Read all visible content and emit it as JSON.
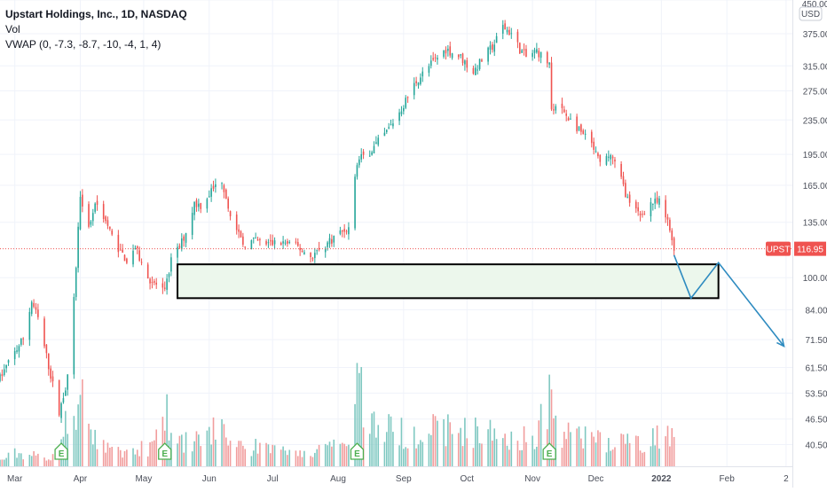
{
  "legend": {
    "title": "Upstart Holdings, Inc., 1D, NASDAQ",
    "vol": "Vol",
    "vwap": "VWAP (0, -7.3, -8.7, -10, -4, 1, 4)"
  },
  "colors": {
    "up": "#26a69a",
    "down": "#ef5350",
    "up_vol": "#7fc8c1",
    "down_vol": "#f19d9d",
    "gap": "#f2b01e",
    "zone_fill": "#ecf7ec",
    "arrow": "#2e8bc0",
    "price_line": "#ef5350",
    "grid": "#f0f3fa",
    "earnings_badge": "#4caf50"
  },
  "chart_data": {
    "type": "candlestick",
    "title": "Upstart Holdings, Inc., 1D, NASDAQ",
    "ticker": "UPST",
    "currency": "USD",
    "last_price": 116.95,
    "last_price_label": "116.95",
    "y_scale": "log",
    "ylim": [
      36,
      450
    ],
    "y_ticks": [
      "450.00",
      "375.00",
      "315.00",
      "275.00",
      "235.00",
      "195.00",
      "165.00",
      "135.00",
      "116.95",
      "100.00",
      "84.00",
      "71.50",
      "61.50",
      "53.50",
      "46.50",
      "40.50"
    ],
    "x_ticks": [
      "Mar",
      "Apr",
      "May",
      "Jun",
      "Jul",
      "Aug",
      "Sep",
      "Oct",
      "Nov",
      "Dec",
      "2022",
      "Feb",
      "2"
    ],
    "x_range": [
      "2021-02-22",
      "2022-03-04"
    ],
    "price_path": [
      [
        "2021-02-22",
        58
      ],
      [
        "2021-02-26",
        63
      ],
      [
        "2021-03-05",
        72
      ],
      [
        "2021-03-09",
        88
      ],
      [
        "2021-03-12",
        80
      ],
      [
        "2021-03-17",
        62
      ],
      [
        "2021-03-22",
        48
      ],
      [
        "2021-03-26",
        58
      ],
      [
        "2021-03-29",
        88
      ],
      [
        "2021-04-01",
        158
      ],
      [
        "2021-04-05",
        130
      ],
      [
        "2021-04-08",
        150
      ],
      [
        "2021-04-12",
        140
      ],
      [
        "2021-04-16",
        125
      ],
      [
        "2021-04-20",
        115
      ],
      [
        "2021-04-23",
        110
      ],
      [
        "2021-04-27",
        118
      ],
      [
        "2021-04-30",
        108
      ],
      [
        "2021-05-03",
        100
      ],
      [
        "2021-05-07",
        96
      ],
      [
        "2021-05-11",
        92
      ],
      [
        "2021-05-14",
        110
      ],
      [
        "2021-05-18",
        118
      ],
      [
        "2021-05-21",
        128
      ],
      [
        "2021-05-25",
        150
      ],
      [
        "2021-05-28",
        148
      ],
      [
        "2021-06-02",
        160
      ],
      [
        "2021-06-07",
        170
      ],
      [
        "2021-06-10",
        148
      ],
      [
        "2021-06-14",
        128
      ],
      [
        "2021-06-17",
        120
      ],
      [
        "2021-06-22",
        122
      ],
      [
        "2021-06-28",
        120
      ],
      [
        "2021-07-06",
        121
      ],
      [
        "2021-07-13",
        118
      ],
      [
        "2021-07-19",
        112
      ],
      [
        "2021-07-23",
        116
      ],
      [
        "2021-07-28",
        122
      ],
      [
        "2021-08-02",
        128
      ],
      [
        "2021-08-06",
        131
      ],
      [
        "2021-08-10",
        188
      ],
      [
        "2021-08-17",
        200
      ],
      [
        "2021-08-24",
        220
      ],
      [
        "2021-08-31",
        250
      ],
      [
        "2021-09-07",
        290
      ],
      [
        "2021-09-14",
        318
      ],
      [
        "2021-09-21",
        345
      ],
      [
        "2021-09-28",
        330
      ],
      [
        "2021-10-04",
        305
      ],
      [
        "2021-10-08",
        325
      ],
      [
        "2021-10-14",
        355
      ],
      [
        "2021-10-18",
        390
      ],
      [
        "2021-10-22",
        375
      ],
      [
        "2021-10-26",
        345
      ],
      [
        "2021-10-29",
        330
      ],
      [
        "2021-11-03",
        342
      ],
      [
        "2021-11-09",
        318
      ],
      [
        "2021-11-10",
        255
      ],
      [
        "2021-11-16",
        245
      ],
      [
        "2021-11-22",
        225
      ],
      [
        "2021-11-29",
        205
      ],
      [
        "2021-12-03",
        185
      ],
      [
        "2021-12-08",
        195
      ],
      [
        "2021-12-13",
        170
      ],
      [
        "2021-12-17",
        148
      ],
      [
        "2021-12-22",
        140
      ],
      [
        "2021-12-27",
        150
      ],
      [
        "2021-12-31",
        150
      ],
      [
        "2022-01-04",
        135
      ],
      [
        "2022-01-07",
        118
      ]
    ],
    "volume_profile": [
      [
        "2021-02-22",
        0.05
      ],
      [
        "2021-03-01",
        0.12
      ],
      [
        "2021-03-20",
        0.08
      ],
      [
        "2021-03-29",
        0.6
      ],
      [
        "2021-04-02",
        0.55
      ],
      [
        "2021-04-06",
        0.25
      ],
      [
        "2021-04-20",
        0.12
      ],
      [
        "2021-05-05",
        0.18
      ],
      [
        "2021-05-11",
        0.55
      ],
      [
        "2021-05-14",
        0.3
      ],
      [
        "2021-05-24",
        0.2
      ],
      [
        "2021-06-04",
        0.35
      ],
      [
        "2021-06-14",
        0.2
      ],
      [
        "2021-07-01",
        0.15
      ],
      [
        "2021-07-20",
        0.12
      ],
      [
        "2021-08-05",
        0.2
      ],
      [
        "2021-08-10",
        0.85
      ],
      [
        "2021-08-16",
        0.4
      ],
      [
        "2021-09-01",
        0.3
      ],
      [
        "2021-09-20",
        0.35
      ],
      [
        "2021-10-14",
        0.3
      ],
      [
        "2021-11-01",
        0.25
      ],
      [
        "2021-11-10",
        0.65
      ],
      [
        "2021-11-15",
        0.3
      ],
      [
        "2021-12-01",
        0.25
      ],
      [
        "2021-12-20",
        0.2
      ],
      [
        "2022-01-07",
        0.35
      ]
    ],
    "earnings_dates": [
      "2021-03-23",
      "2021-05-11",
      "2021-08-10",
      "2021-11-09"
    ],
    "earnings_label": "E",
    "support_zone": {
      "date_from": "2021-05-17",
      "date_to": "2022-01-28",
      "price_low": 89.5,
      "price_high": 107.5
    },
    "projection_path": [
      [
        "2022-01-07",
        113
      ],
      [
        "2022-01-15",
        89.5
      ],
      [
        "2022-01-28",
        108.5
      ],
      [
        "2022-02-28",
        69
      ]
    ]
  }
}
